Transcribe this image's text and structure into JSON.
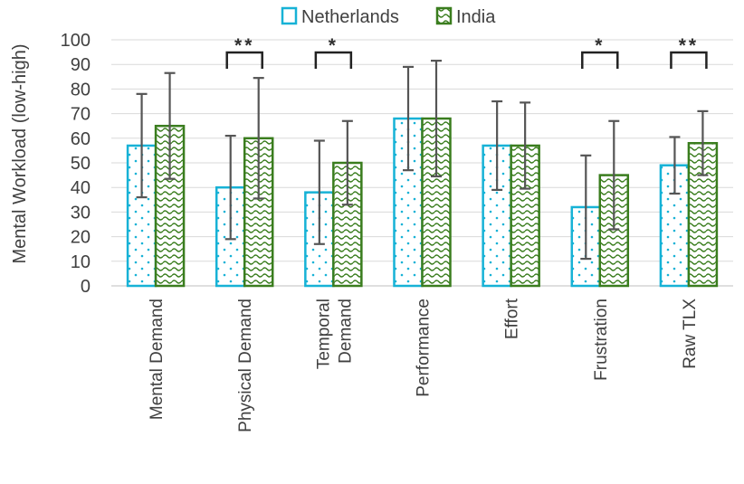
{
  "chart_data": {
    "type": "bar",
    "ylabel": "Mental Workload (low-high)",
    "ylim": [
      0,
      100
    ],
    "yticks": [
      "0",
      "10",
      "20",
      "30",
      "40",
      "50",
      "60",
      "70",
      "80",
      "90",
      "100"
    ],
    "grid": true,
    "legend_position": "top",
    "categories": [
      [
        "Mental Demand"
      ],
      [
        "Physical Demand"
      ],
      [
        "Temporal",
        "Demand"
      ],
      [
        "Performance"
      ],
      [
        "Effort"
      ],
      [
        "Frustration"
      ],
      [
        "Raw TLX"
      ]
    ],
    "series": [
      {
        "name": "Netherlands",
        "color": "#17b2d6",
        "pattern": "dots",
        "values": [
          57,
          40,
          38,
          68,
          57,
          32,
          49
        ],
        "error": [
          21,
          21,
          21,
          21,
          18,
          21,
          11.5
        ]
      },
      {
        "name": "India",
        "color": "#3a7d1e",
        "pattern": "waves",
        "values": [
          65,
          60,
          50,
          68,
          57,
          45,
          58
        ],
        "error": [
          21.5,
          24.5,
          17,
          23.5,
          17.5,
          22,
          13
        ]
      }
    ],
    "significance": [
      "",
      "**",
      "*",
      "",
      "",
      "*",
      "**"
    ]
  }
}
